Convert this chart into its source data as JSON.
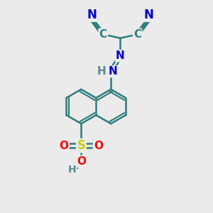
{
  "background_color": "#ebebeb",
  "bond_color": "#2d7d7d",
  "bond_width": 1.8,
  "atom_colors": {
    "N": "#0000cc",
    "S": "#cccc00",
    "O": "#ff0000",
    "H": "#5a8a8a",
    "C": "#2d7d7d"
  },
  "figsize": [
    3.0,
    3.0
  ],
  "dpi": 100
}
